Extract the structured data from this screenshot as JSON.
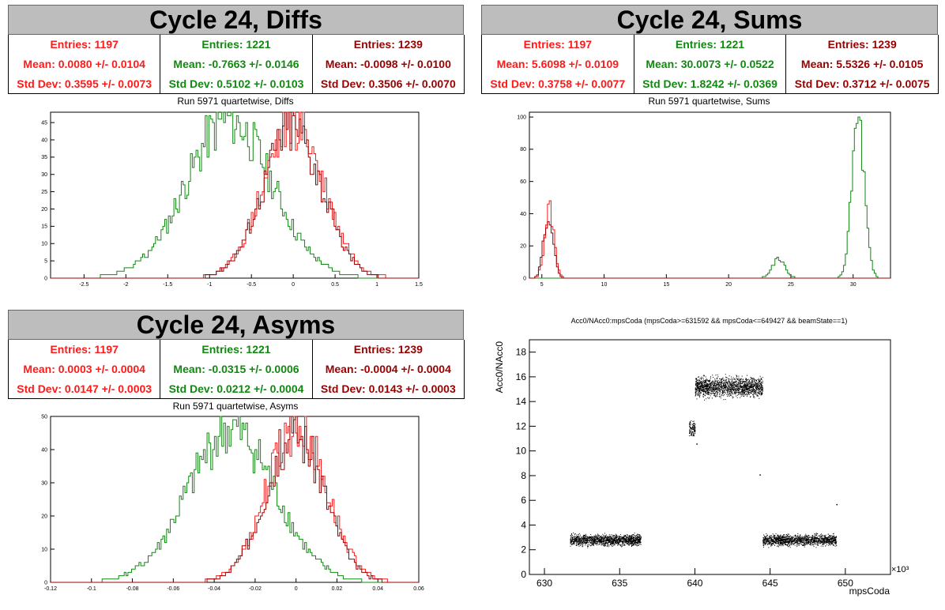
{
  "colors": {
    "red": "#ff1a1a",
    "green": "#118811",
    "darkred": "#990000"
  },
  "panels": {
    "diffs": {
      "title": "Cycle 24, Diffs",
      "subtitle": "Run 5971 quartetwise, Diffs",
      "stats": [
        {
          "entries": "Entries: 1197",
          "mean": "Mean: 0.0080 +/- 0.0104",
          "std": "Std Dev: 0.3595 +/- 0.0073"
        },
        {
          "entries": "Entries: 1221",
          "mean": "Mean: -0.7663 +/- 0.0146",
          "std": "Std Dev: 0.5102 +/- 0.0103"
        },
        {
          "entries": "Entries: 1239",
          "mean": "Mean: -0.0098 +/- 0.0100",
          "std": "Std Dev: 0.3506 +/- 0.0070"
        }
      ]
    },
    "sums": {
      "title": "Cycle 24, Sums",
      "subtitle": "Run 5971 quartetwise, Sums",
      "stats": [
        {
          "entries": "Entries: 1197",
          "mean": "Mean: 5.6098 +/- 0.0109",
          "std": "Std Dev: 0.3758 +/- 0.0077"
        },
        {
          "entries": "Entries: 1221",
          "mean": "Mean: 30.0073 +/- 0.0522",
          "std": "Std Dev: 1.8242 +/- 0.0369"
        },
        {
          "entries": "Entries: 1239",
          "mean": "Mean: 5.5326 +/- 0.0105",
          "std": "Std Dev: 0.3712 +/- 0.0075"
        }
      ]
    },
    "asyms": {
      "title": "Cycle 24, Asyms",
      "subtitle": "Run 5971 quartetwise, Asyms",
      "stats": [
        {
          "entries": "Entries: 1197",
          "mean": "Mean: 0.0003 +/- 0.0004",
          "std": "Std Dev: 0.0147 +/- 0.0003"
        },
        {
          "entries": "Entries: 1221",
          "mean": "Mean: -0.0315 +/- 0.0006",
          "std": "Std Dev: 0.0212 +/- 0.0004"
        },
        {
          "entries": "Entries: 1239",
          "mean": "Mean: -0.0004 +/- 0.0004",
          "std": "Std Dev: 0.0143 +/- 0.0003"
        }
      ]
    },
    "scatter": {
      "title": "Acc0/NAcc0:mpsCoda (mpsCoda>=631592 && mpsCoda<=649427 && beamState==1)",
      "xlabel": "mpsCoda",
      "ylabel": "Acc0/NAcc0",
      "xexp": "×10³"
    }
  },
  "chart_data": [
    {
      "type": "histogram",
      "name": "diffs",
      "xlim": [
        -2.9,
        1.5
      ],
      "ylim": [
        0,
        48
      ],
      "xticks": [
        -2.5,
        -2,
        -1.5,
        -1,
        -0.5,
        0,
        0.5,
        1,
        1.5
      ],
      "xtick_labels": [
        "-2.5",
        "-2",
        "-1.5",
        "-1",
        "-0.5",
        "0",
        "0.5",
        "1",
        "1.5"
      ],
      "yticks": [
        0,
        5,
        10,
        15,
        20,
        25,
        30,
        35,
        40,
        45
      ],
      "ytick_labels": [
        "0",
        "5",
        "10",
        "15",
        "20",
        "25",
        "30",
        "35",
        "40",
        "45"
      ],
      "series": [
        {
          "color_key": "green",
          "mean": -0.766,
          "std": 0.51,
          "peak": 47,
          "seed": 11
        },
        {
          "color_key": "red",
          "mean": 0.008,
          "std": 0.36,
          "peak": 46,
          "seed": 23
        },
        {
          "color_key": "darkred",
          "mean": -0.01,
          "std": 0.35,
          "peak": 45,
          "seed": 37
        }
      ]
    },
    {
      "type": "histogram",
      "name": "sums",
      "xlim": [
        4,
        33
      ],
      "ylim": [
        0,
        103
      ],
      "xticks": [
        5,
        10,
        15,
        20,
        25,
        30
      ],
      "xtick_labels": [
        "5",
        "10",
        "15",
        "20",
        "25",
        "30"
      ],
      "yticks": [
        0,
        20,
        40,
        60,
        80,
        100
      ],
      "ytick_labels": [
        "0",
        "20",
        "40",
        "60",
        "80",
        "100"
      ],
      "series": [
        {
          "color_key": "green",
          "mean": 30.4,
          "std": 0.5,
          "peak": 100,
          "seed": 5,
          "second_mean": 24.0,
          "second_std": 0.5,
          "second_peak": 12
        },
        {
          "color_key": "red",
          "mean": 5.61,
          "std": 0.376,
          "peak": 44,
          "seed": 13
        },
        {
          "color_key": "darkred",
          "mean": 5.53,
          "std": 0.371,
          "peak": 42,
          "seed": 29
        }
      ]
    },
    {
      "type": "histogram",
      "name": "asyms",
      "xlim": [
        -0.12,
        0.06
      ],
      "ylim": [
        0,
        50
      ],
      "xticks": [
        -0.12,
        -0.1,
        -0.08,
        -0.06,
        -0.04,
        -0.02,
        0,
        0.02,
        0.04,
        0.06
      ],
      "xtick_labels": [
        "-0.12",
        "-0.1",
        "-0.08",
        "-0.06",
        "-0.04",
        "-0.02",
        "0",
        "0.02",
        "0.04",
        "0.06"
      ],
      "yticks": [
        0,
        10,
        20,
        30,
        40,
        50
      ],
      "ytick_labels": [
        "0",
        "10",
        "20",
        "30",
        "40",
        "50"
      ],
      "series": [
        {
          "color_key": "green",
          "mean": -0.0315,
          "std": 0.0212,
          "peak": 47,
          "seed": 41
        },
        {
          "color_key": "red",
          "mean": 0.0003,
          "std": 0.0147,
          "peak": 48,
          "seed": 53
        },
        {
          "color_key": "darkred",
          "mean": -0.0004,
          "std": 0.0143,
          "peak": 46,
          "seed": 67
        }
      ]
    },
    {
      "type": "scatter",
      "name": "scatter",
      "xlim": [
        629,
        653
      ],
      "ylim": [
        0,
        19
      ],
      "xticks": [
        630,
        635,
        640,
        645,
        650
      ],
      "xtick_labels": [
        "630",
        "635",
        "640",
        "645",
        "650"
      ],
      "yticks": [
        0,
        2,
        4,
        6,
        8,
        10,
        12,
        14,
        16,
        18
      ],
      "ytick_labels": [
        "0",
        "2",
        "4",
        "6",
        "8",
        "10",
        "12",
        "14",
        "16",
        "18"
      ],
      "clusters": [
        {
          "x": [
            631.7,
            636.4
          ],
          "y_mean": 2.8,
          "y_spread": 0.4,
          "n": 1400
        },
        {
          "x": [
            639.6,
            640.0
          ],
          "y_mean": 11.8,
          "y_spread": 0.6,
          "n": 120
        },
        {
          "x": [
            640.0,
            644.5
          ],
          "y_mean": 15.2,
          "y_spread": 0.7,
          "n": 1600
        },
        {
          "x": [
            644.5,
            649.4
          ],
          "y_mean": 2.8,
          "y_spread": 0.4,
          "n": 1400
        }
      ]
    }
  ]
}
